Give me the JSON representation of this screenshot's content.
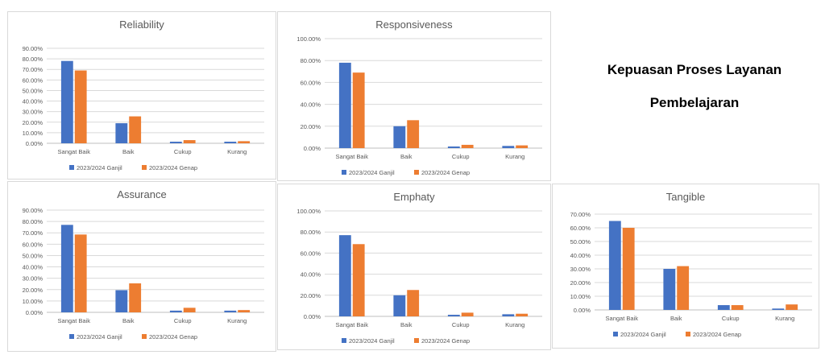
{
  "heading": {
    "line1": "Kepuasan Proses Layanan",
    "line2": "Pembelajaran"
  },
  "colors": {
    "ganjil": "#4472C4",
    "genap": "#ED7D31",
    "grid": "#d9d9d9",
    "text": "#595959"
  },
  "chart_data": [
    {
      "type": "bar",
      "title": "Reliability",
      "categories": [
        "Sangat Baik",
        "Baik",
        "Cukup",
        "Kurang"
      ],
      "series": [
        {
          "name": "2023/2024 Ganjil",
          "values": [
            78,
            19,
            1.5,
            1.5
          ]
        },
        {
          "name": "2023/2024 Genap",
          "values": [
            69,
            25.5,
            3,
            2
          ]
        }
      ],
      "yticks": [
        "0.00%",
        "10.00%",
        "20.00%",
        "30.00%",
        "40.00%",
        "50.00%",
        "60.00%",
        "70.00%",
        "80.00%",
        "90.00%"
      ],
      "ylim": [
        0,
        90
      ],
      "legend": "bottom"
    },
    {
      "type": "bar",
      "title": "Responsiveness",
      "categories": [
        "Sangat Baik",
        "Baik",
        "Cukup",
        "Kurang"
      ],
      "series": [
        {
          "name": "2023/2024 Ganjil",
          "values": [
            78,
            20,
            1.5,
            2
          ]
        },
        {
          "name": "2023/2024 Genap",
          "values": [
            69,
            25.5,
            3,
            2.5
          ]
        }
      ],
      "yticks": [
        "0.00%",
        "20.00%",
        "40.00%",
        "60.00%",
        "80.00%",
        "100.00%"
      ],
      "ylim": [
        0,
        100
      ],
      "legend": "bottom"
    },
    {
      "type": "bar",
      "title": "Assurance",
      "categories": [
        "Sangat Baik",
        "Baik",
        "Cukup",
        "Kurang"
      ],
      "series": [
        {
          "name": "2023/2024 Ganjil",
          "values": [
            77,
            19.5,
            1.5,
            1.5
          ]
        },
        {
          "name": "2023/2024 Genap",
          "values": [
            68.5,
            25.5,
            4,
            2
          ]
        }
      ],
      "yticks": [
        "0.00%",
        "10.00%",
        "20.00%",
        "30.00%",
        "40.00%",
        "50.00%",
        "60.00%",
        "70.00%",
        "80.00%",
        "90.00%"
      ],
      "ylim": [
        0,
        90
      ],
      "legend": "bottom"
    },
    {
      "type": "bar",
      "title": "Emphaty",
      "categories": [
        "Sangat Baik",
        "Baik",
        "Cukup",
        "Kurang"
      ],
      "series": [
        {
          "name": "2023/2024 Ganjil",
          "values": [
            77,
            20,
            1.5,
            2
          ]
        },
        {
          "name": "2023/2024 Genap",
          "values": [
            68.5,
            25,
            3.5,
            2.5
          ]
        }
      ],
      "yticks": [
        "0.00%",
        "20.00%",
        "40.00%",
        "60.00%",
        "80.00%",
        "100.00%"
      ],
      "ylim": [
        0,
        100
      ],
      "legend": "bottom"
    },
    {
      "type": "bar",
      "title": "Tangible",
      "categories": [
        "Sangat Baik",
        "Baik",
        "Cukup",
        "Kurang"
      ],
      "series": [
        {
          "name": "2023/2024 Ganjil",
          "values": [
            65,
            30,
            3.5,
            1
          ]
        },
        {
          "name": "2023/2024 Genap",
          "values": [
            60,
            32,
            3.5,
            4
          ]
        }
      ],
      "yticks": [
        "0.00%",
        "10.00%",
        "20.00%",
        "30.00%",
        "40.00%",
        "50.00%",
        "60.00%",
        "70.00%"
      ],
      "ylim": [
        0,
        70
      ],
      "legend": "bottom"
    }
  ]
}
